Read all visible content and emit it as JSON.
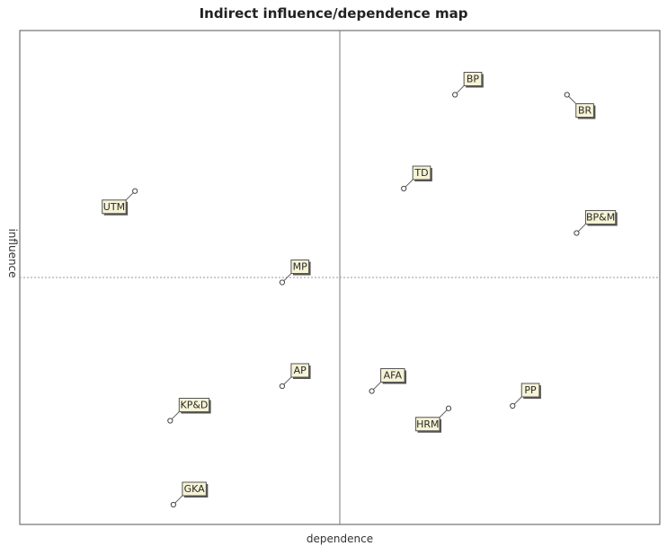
{
  "chart_data": {
    "type": "scatter",
    "title": "Indirect influence/dependence map",
    "xlabel": "dependence",
    "ylabel": "influence",
    "xlim": [
      0,
      100
    ],
    "ylim": [
      0,
      100
    ],
    "grid": false,
    "quadrant_lines": {
      "x": 50,
      "y": 50
    },
    "points": [
      {
        "label": "BP",
        "x": 68,
        "y": 87,
        "label_dir": "ne"
      },
      {
        "label": "BR",
        "x": 85.5,
        "y": 87,
        "label_dir": "se"
      },
      {
        "label": "TD",
        "x": 60,
        "y": 68,
        "label_dir": "ne"
      },
      {
        "label": "BP&M",
        "x": 87,
        "y": 59,
        "label_dir": "ne"
      },
      {
        "label": "UTM",
        "x": 18,
        "y": 67.5,
        "label_dir": "sw"
      },
      {
        "label": "MP",
        "x": 41,
        "y": 49,
        "label_dir": "ne"
      },
      {
        "label": "AP",
        "x": 41,
        "y": 28,
        "label_dir": "ne"
      },
      {
        "label": "AFA",
        "x": 55,
        "y": 27,
        "label_dir": "ne"
      },
      {
        "label": "PP",
        "x": 77,
        "y": 24,
        "label_dir": "ne"
      },
      {
        "label": "HRM",
        "x": 67,
        "y": 23.5,
        "label_dir": "sw"
      },
      {
        "label": "KP&D",
        "x": 23.5,
        "y": 21,
        "label_dir": "ne"
      },
      {
        "label": "GKA",
        "x": 24,
        "y": 4,
        "label_dir": "ne"
      }
    ]
  }
}
